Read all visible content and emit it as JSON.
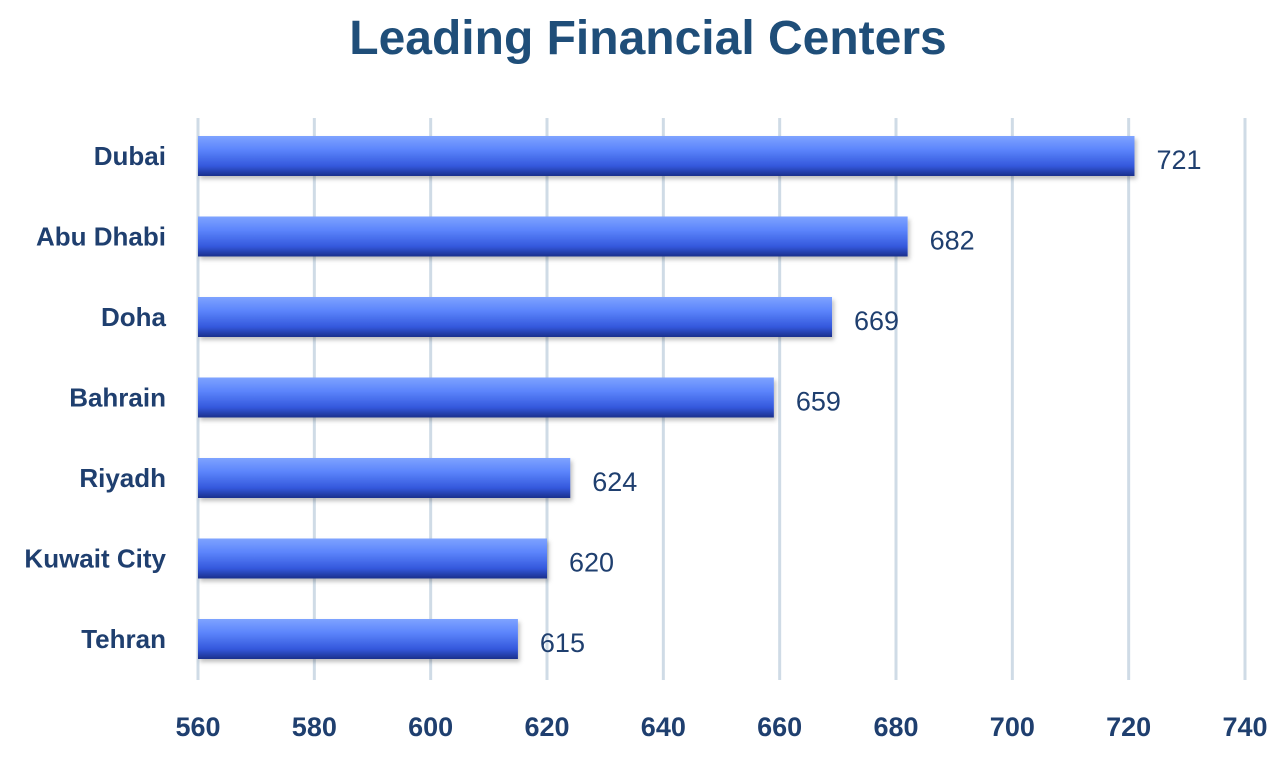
{
  "chart_data": {
    "type": "bar",
    "orientation": "horizontal",
    "title": "Leading Financial Centers",
    "categories": [
      "Dubai",
      "Abu Dhabi",
      "Doha",
      "Bahrain",
      "Riyadh",
      "Kuwait City",
      "Tehran"
    ],
    "values": [
      721,
      682,
      669,
      659,
      624,
      620,
      615
    ],
    "xlim": [
      560,
      740
    ],
    "xticks": [
      560,
      580,
      600,
      620,
      640,
      660,
      680,
      700,
      720,
      740
    ],
    "xlabel": "",
    "ylabel": "",
    "grid": "vertical",
    "data_labels": true,
    "colors": {
      "bar_top": "#6f96ff",
      "bar_mid": "#3f6cf0",
      "bar_bottom": "#1d3aa8",
      "text": "#1f3f6f",
      "title": "#1f4e79",
      "grid": "#cfdbe6"
    }
  }
}
